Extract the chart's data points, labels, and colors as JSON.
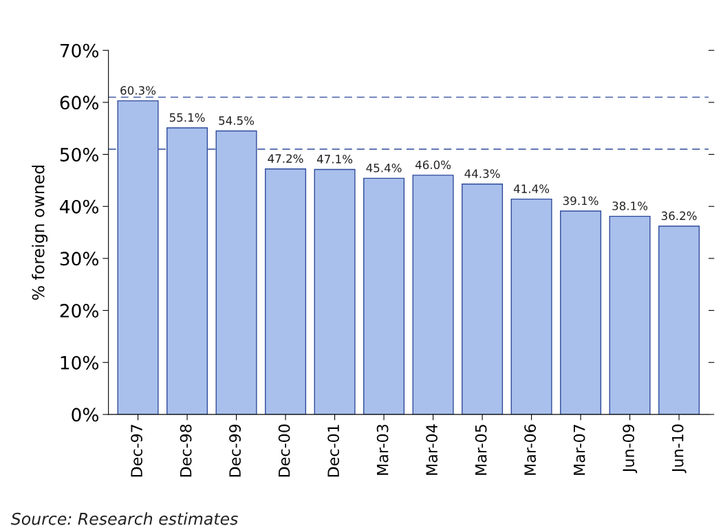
{
  "chart_data": {
    "type": "bar",
    "ylabel": "% foreign owned",
    "categories": [
      "Dec-97",
      "Dec-98",
      "Dec-99",
      "Dec-00",
      "Dec-01",
      "Mar-03",
      "Mar-04",
      "Mar-05",
      "Mar-06",
      "Mar-07",
      "Jun-09",
      "Jun-10"
    ],
    "values": [
      60.3,
      55.1,
      54.5,
      47.2,
      47.1,
      45.4,
      46.0,
      44.3,
      41.4,
      39.1,
      38.1,
      36.2
    ],
    "value_labels": [
      "60.3%",
      "55.1%",
      "54.5%",
      "47.2%",
      "47.1%",
      "45.4%",
      "46.0%",
      "44.3%",
      "41.4%",
      "39.1%",
      "38.1%",
      "36.2%"
    ],
    "color": "#a9c0ec",
    "ylim": [
      0,
      70
    ],
    "yticks": [
      {
        "value": 0,
        "label": "0%"
      },
      {
        "value": 10,
        "label": "10%"
      },
      {
        "value": 20,
        "label": "20%"
      },
      {
        "value": 30,
        "label": "30%"
      },
      {
        "value": 40,
        "label": "40%"
      },
      {
        "value": 50,
        "label": "50%"
      },
      {
        "value": 60,
        "label": "60%"
      },
      {
        "value": 70,
        "label": "70%"
      }
    ],
    "ref_lines": [
      {
        "axis": "y",
        "value": 61,
        "color": "#2e4a9a",
        "line_style": "dashed"
      },
      {
        "axis": "y",
        "value": 51,
        "color": "#2e4a9a",
        "line_style": "dashed"
      }
    ],
    "annotations": [
      "Source: Research estimates"
    ],
    "grid": false,
    "legend": false
  }
}
